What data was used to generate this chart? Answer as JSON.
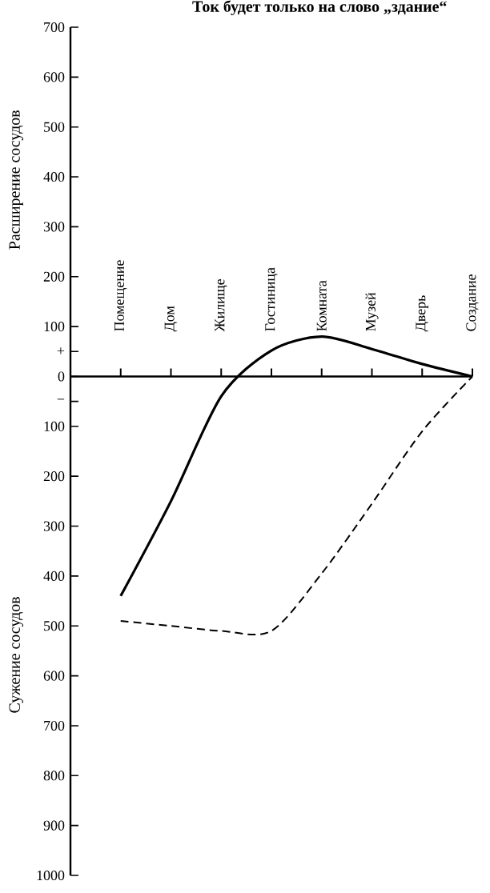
{
  "chart_data": {
    "type": "line",
    "title": "Ток будет только на слово „здание“",
    "ylabel": "Расширение сосудов",
    "annotations": [
      "Сужение сосудов"
    ],
    "categories": [
      "Помещение",
      "Дом",
      "Жилище",
      "Гостиница",
      "Комната",
      "Музей",
      "Дверь",
      "Создание"
    ],
    "series": [
      {
        "color": "#000000",
        "line_style": "solid",
        "values": [
          -440,
          -250,
          -40,
          52,
          80,
          55,
          25,
          0
        ]
      },
      {
        "color": "#000000",
        "line_style": "dashed",
        "values": [
          -490,
          -500,
          -510,
          -510,
          -395,
          -255,
          -110,
          0
        ]
      }
    ],
    "ylim": [
      -1000,
      700
    ],
    "yticks": [
      700,
      600,
      500,
      400,
      300,
      200,
      100,
      {
        "value": 50,
        "label": "+"
      },
      0,
      {
        "value": -50,
        "label": "−"
      },
      {
        "value": -100,
        "label": "100"
      },
      {
        "value": -200,
        "label": "200"
      },
      {
        "value": -300,
        "label": "300"
      },
      {
        "value": -400,
        "label": "400"
      },
      {
        "value": -500,
        "label": "500"
      },
      {
        "value": -600,
        "label": "600"
      },
      {
        "value": -700,
        "label": "700"
      },
      {
        "value": -800,
        "label": "800"
      },
      {
        "value": -900,
        "label": "900"
      },
      {
        "value": -1000,
        "label": "1000"
      }
    ]
  }
}
